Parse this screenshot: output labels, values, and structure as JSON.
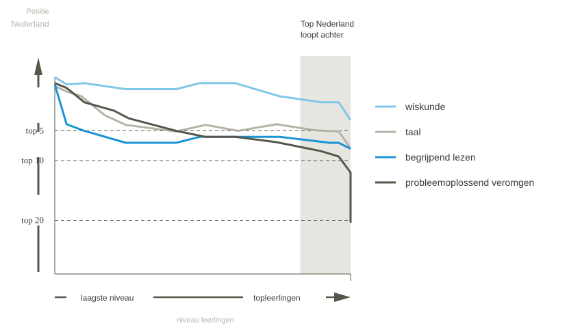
{
  "chart_data": {
    "type": "line",
    "y_title": [
      "Positie",
      "Nederland"
    ],
    "x_title": "niveau leerlingen",
    "x_arrow_labels": {
      "left": "laagste niveau",
      "right": "topleerlingen"
    },
    "highlight": {
      "label": [
        "Top Nederland",
        "loopt achter"
      ],
      "x_range": [
        0.83,
        1.0
      ]
    },
    "y_ticks": [
      {
        "label": "top 5",
        "value": 5
      },
      {
        "label": "top 10",
        "value": 10
      },
      {
        "label": "top 20",
        "value": 20
      }
    ],
    "x_range": [
      0,
      1
    ],
    "y_range": [
      -4,
      29
    ],
    "legend_position": "right",
    "series": [
      {
        "name": "wiskunde",
        "color": "#7fc7e8",
        "points": [
          [
            0.0,
            -4.0
          ],
          [
            0.04,
            -2.8
          ],
          [
            0.1,
            -3.0
          ],
          [
            0.24,
            -2.0
          ],
          [
            0.41,
            -2.0
          ],
          [
            0.49,
            -3.0
          ],
          [
            0.61,
            -3.0
          ],
          [
            0.76,
            -0.8
          ],
          [
            0.9,
            0.2
          ],
          [
            0.96,
            0.2
          ],
          [
            1.0,
            3.2
          ]
        ]
      },
      {
        "name": "taal",
        "color": "#b3b3a6",
        "points": [
          [
            0.0,
            -2.5
          ],
          [
            0.04,
            -1.6
          ],
          [
            0.09,
            -0.8
          ],
          [
            0.17,
            2.4
          ],
          [
            0.24,
            4.0
          ],
          [
            0.41,
            5.1
          ],
          [
            0.51,
            4.0
          ],
          [
            0.62,
            5.0
          ],
          [
            0.75,
            3.9
          ],
          [
            0.88,
            4.9
          ],
          [
            0.96,
            5.1
          ],
          [
            1.0,
            7.9
          ]
        ]
      },
      {
        "name": "begrijpend lezen",
        "color": "#1b94d6",
        "points": [
          [
            0.0,
            -2.8
          ],
          [
            0.04,
            3.9
          ],
          [
            0.1,
            5.0
          ],
          [
            0.24,
            7.0
          ],
          [
            0.41,
            7.0
          ],
          [
            0.49,
            6.0
          ],
          [
            0.61,
            6.0
          ],
          [
            0.76,
            6.0
          ],
          [
            0.93,
            7.0
          ],
          [
            0.96,
            7.0
          ],
          [
            1.0,
            8.0
          ]
        ]
      },
      {
        "name": "probleemoplossend veromgen",
        "color": "#55574a",
        "points": [
          [
            0.0,
            -3.0
          ],
          [
            0.04,
            -2.2
          ],
          [
            0.1,
            0.2
          ],
          [
            0.2,
            1.6
          ],
          [
            0.25,
            2.9
          ],
          [
            0.41,
            5.0
          ],
          [
            0.51,
            6.0
          ],
          [
            0.61,
            6.0
          ],
          [
            0.75,
            6.9
          ],
          [
            0.9,
            8.4
          ],
          [
            0.96,
            9.3
          ],
          [
            1.0,
            12.0
          ],
          [
            1.0,
            13.0
          ],
          [
            1.05,
            20.4
          ]
        ]
      }
    ]
  }
}
